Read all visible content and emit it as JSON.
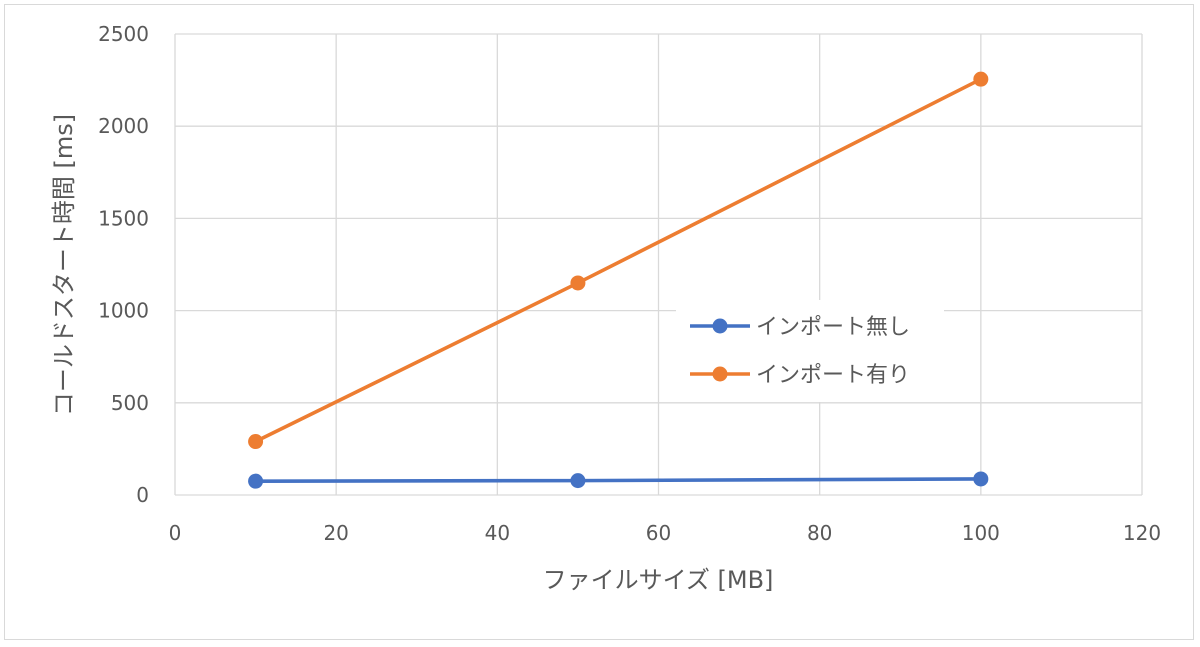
{
  "chart_data": {
    "type": "line",
    "title": "",
    "xlabel": "ファイルサイズ [MB]",
    "ylabel": "コールドスタート時間 [ms]",
    "xlim": [
      0,
      120
    ],
    "ylim": [
      0,
      2500
    ],
    "xticks": [
      0,
      20,
      40,
      60,
      80,
      100,
      120
    ],
    "yticks": [
      0,
      500,
      1000,
      1500,
      2000,
      2500
    ],
    "x": [
      10,
      50,
      100
    ],
    "grid": true,
    "legend": "right",
    "series": [
      {
        "name": "インポート無し",
        "values": [
          75,
          78,
          87
        ],
        "color": "#4472C4"
      },
      {
        "name": "インポート有り",
        "values": [
          290,
          1150,
          2255
        ],
        "color": "#ED7D31"
      }
    ]
  }
}
